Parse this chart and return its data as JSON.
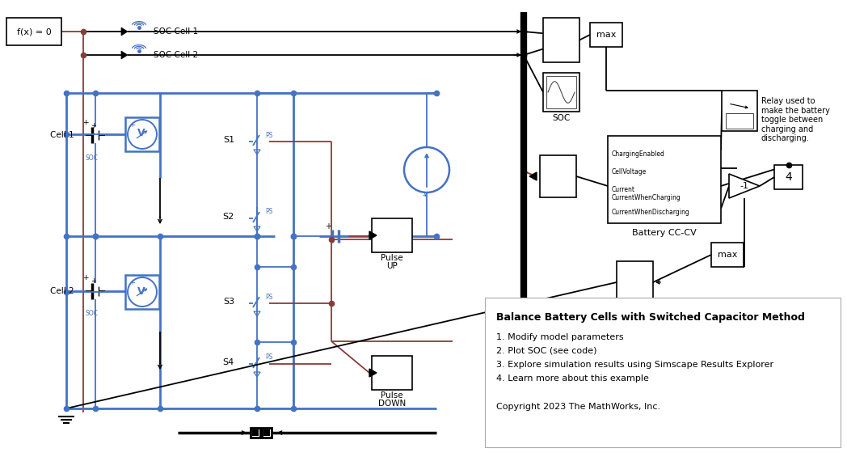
{
  "bg_color": "#ffffff",
  "blue": "#4472c4",
  "red": "#8B3A3A",
  "black": "#000000",
  "description_title": "Balance Battery Cells with Switched Capacitor Method",
  "description_items": [
    "1. Modify model parameters",
    "2. Plot SOC (see code)",
    "3. Explore simulation results using Simscape Results Explorer",
    "4. Learn more about this example"
  ],
  "copyright": "Copyright 2023 The MathWorks, Inc.",
  "relay_text": "Relay used to\nmake the battery\ntoggle between\ncharging and\ndischarging."
}
